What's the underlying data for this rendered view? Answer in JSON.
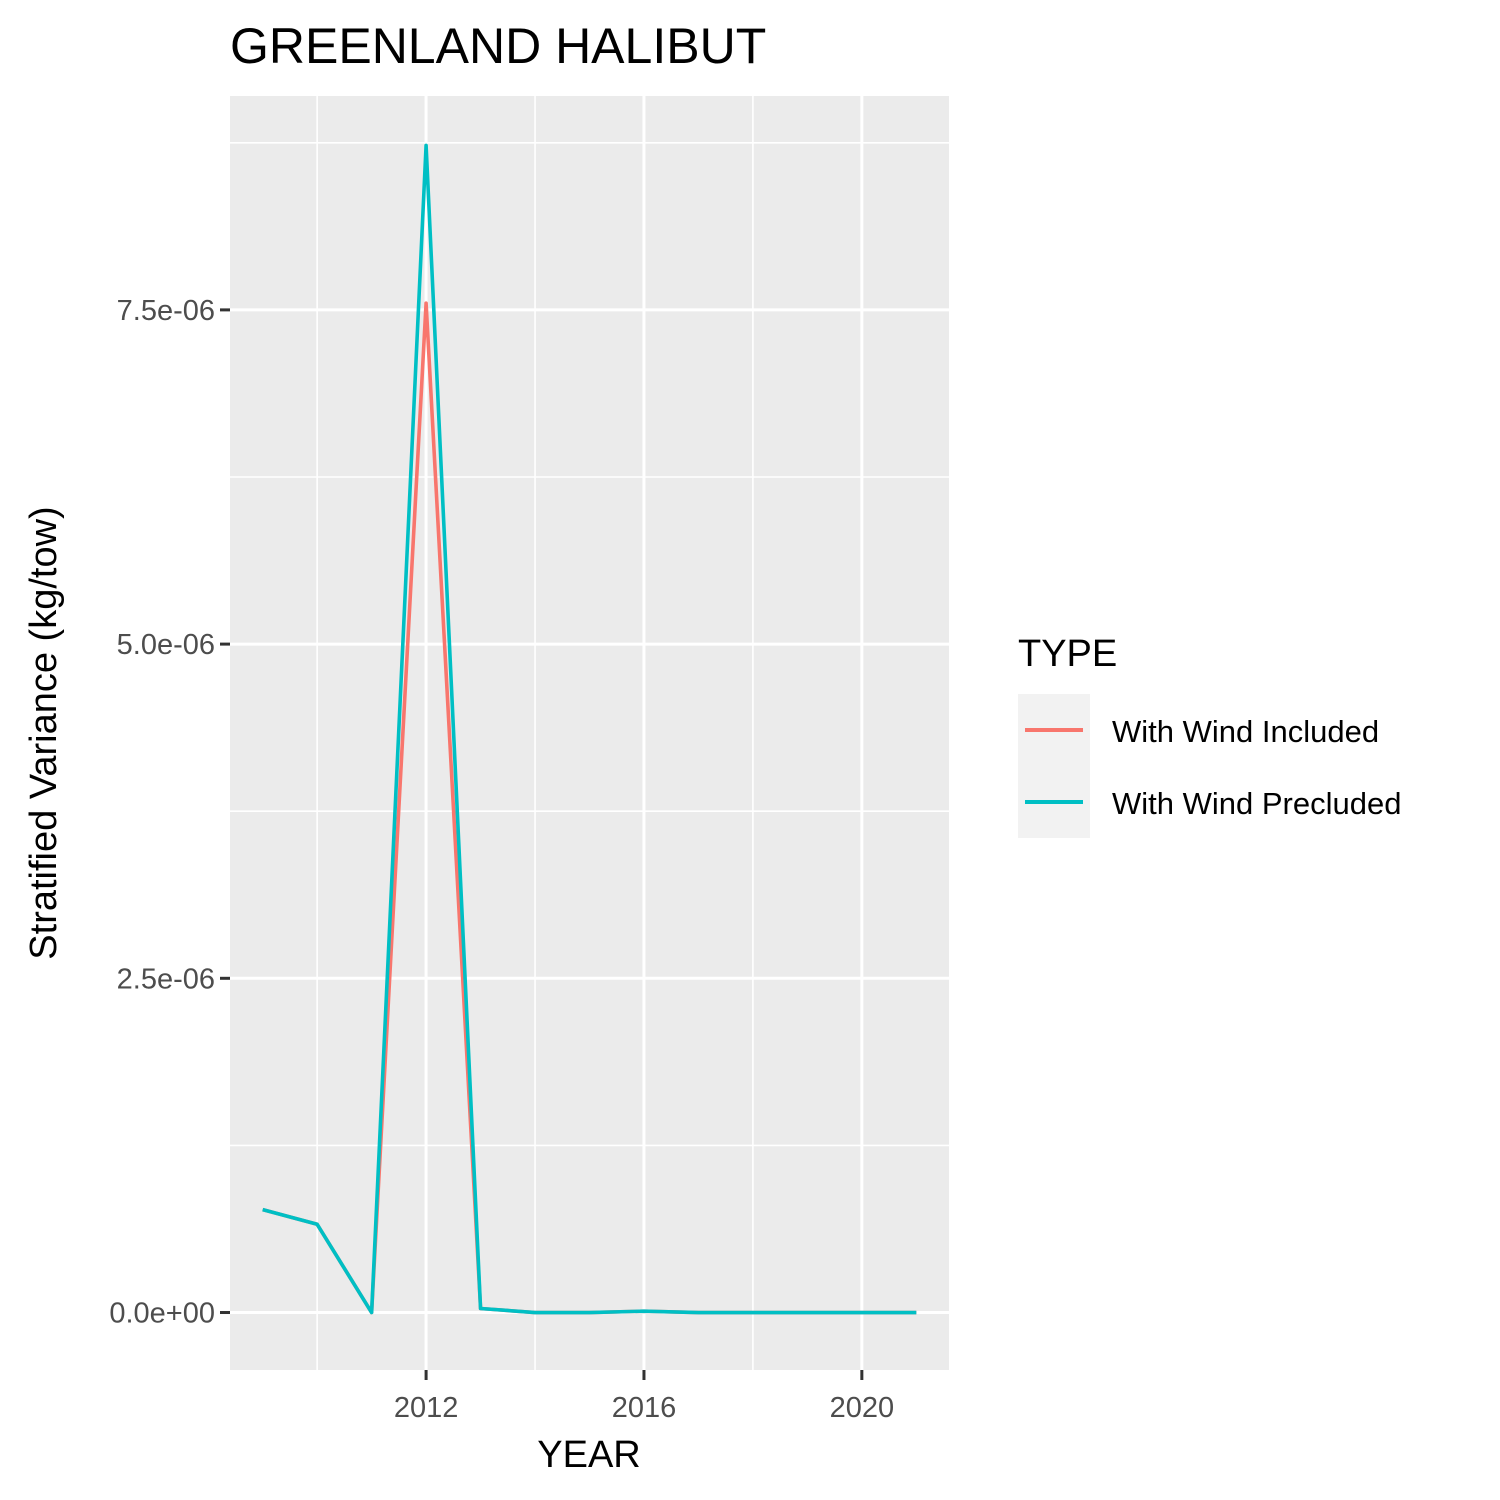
{
  "chart_data": {
    "type": "line",
    "title": "GREENLAND HALIBUT",
    "xlabel": "YEAR",
    "ylabel": "Stratified Variance (kg/tow)",
    "xlim": [
      2008.4,
      2021.6
    ],
    "ylim": [
      -4.3e-07,
      9.1e-06
    ],
    "xticks": [
      2012,
      2016,
      2020
    ],
    "xtick_labels": [
      "2012",
      "2016",
      "2020"
    ],
    "x_minor_ticks": [
      2010,
      2014,
      2018
    ],
    "yticks": [
      0,
      2.5e-06,
      5e-06,
      7.5e-06
    ],
    "ytick_labels": [
      "0.0e+00",
      "2.5e-06",
      "5.0e-06",
      "7.5e-06"
    ],
    "y_minor_ticks": [
      1.25e-06,
      3.75e-06,
      6.25e-06,
      8.75e-06
    ],
    "grid": true,
    "legend": {
      "title": "TYPE",
      "position": "right",
      "entries": [
        "With Wind Included",
        "With Wind Precluded"
      ]
    },
    "series": [
      {
        "name": "With Wind Included",
        "color": "#F8766D",
        "x": [
          2009,
          2010,
          2011,
          2012,
          2013,
          2014,
          2015,
          2016,
          2017,
          2018,
          2019,
          2020,
          2021
        ],
        "y": [
          7.7e-07,
          6.6e-07,
          0.0,
          7.55e-06,
          3e-08,
          0.0,
          0.0,
          1e-08,
          0.0,
          0.0,
          0.0,
          0.0,
          0.0
        ]
      },
      {
        "name": "With Wind Precluded",
        "color": "#00BFC4",
        "x": [
          2009,
          2010,
          2011,
          2012,
          2013,
          2014,
          2015,
          2016,
          2017,
          2018,
          2019,
          2020,
          2021
        ],
        "y": [
          7.7e-07,
          6.6e-07,
          0.0,
          8.73e-06,
          3e-08,
          0.0,
          0.0,
          1e-08,
          0.0,
          0.0,
          0.0,
          0.0,
          0.0
        ]
      }
    ]
  }
}
